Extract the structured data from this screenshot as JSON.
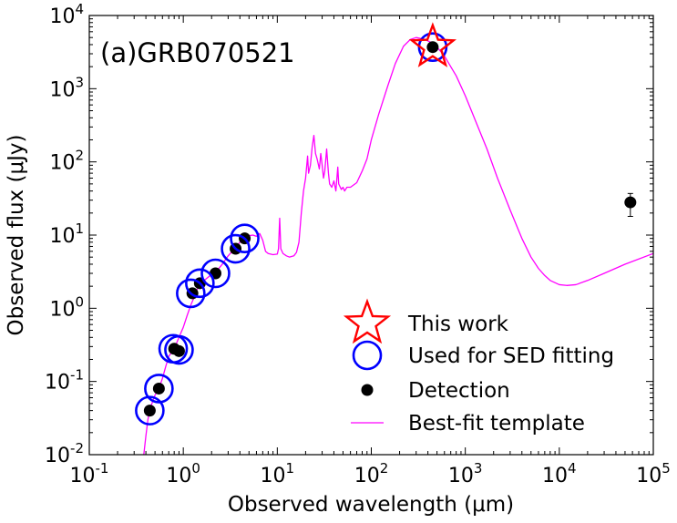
{
  "chart_data": {
    "type": "scatter",
    "annotation": "(a)GRB070521",
    "xlabel": "Observed wavelength (μm)",
    "ylabel": "Observed flux (μJy)",
    "xscale": "log",
    "yscale": "log",
    "xlim": [
      0.1,
      100000
    ],
    "ylim": [
      0.01,
      10000
    ],
    "x_ticks": [
      {
        "value": 0.1,
        "base": "10",
        "exp": "-1"
      },
      {
        "value": 1,
        "base": "10",
        "exp": "0"
      },
      {
        "value": 10,
        "base": "10",
        "exp": "1"
      },
      {
        "value": 100,
        "base": "10",
        "exp": "2"
      },
      {
        "value": 1000,
        "base": "10",
        "exp": "3"
      },
      {
        "value": 10000,
        "base": "10",
        "exp": "4"
      },
      {
        "value": 100000,
        "base": "10",
        "exp": "5"
      }
    ],
    "y_ticks": [
      {
        "value": 0.01,
        "base": "10",
        "exp": "-2"
      },
      {
        "value": 0.1,
        "base": "10",
        "exp": "-1"
      },
      {
        "value": 1,
        "base": "10",
        "exp": "0"
      },
      {
        "value": 10,
        "base": "10",
        "exp": "1"
      },
      {
        "value": 100,
        "base": "10",
        "exp": "2"
      },
      {
        "value": 1000,
        "base": "10",
        "exp": "3"
      },
      {
        "value": 10000,
        "base": "10",
        "exp": "4"
      }
    ],
    "legend": {
      "location": "lower-right",
      "entries": [
        {
          "label": "This work",
          "marker": "star",
          "color": "#ff0000"
        },
        {
          "label": "Used for SED fitting",
          "marker": "open-circle",
          "color": "#0000ff"
        },
        {
          "label": "Detection",
          "marker": "filled-circle",
          "color": "#000000"
        },
        {
          "label": "Best-fit template",
          "marker": "line",
          "color": "#ff00ff"
        }
      ]
    },
    "series": [
      {
        "name": "Detection",
        "points": [
          {
            "x": 0.44,
            "y": 0.04
          },
          {
            "x": 0.55,
            "y": 0.08
          },
          {
            "x": 0.8,
            "y": 0.28
          },
          {
            "x": 0.9,
            "y": 0.26
          },
          {
            "x": 1.25,
            "y": 1.6
          },
          {
            "x": 1.5,
            "y": 2.2
          },
          {
            "x": 2.2,
            "y": 3.0
          },
          {
            "x": 3.6,
            "y": 6.5
          },
          {
            "x": 4.5,
            "y": 9.0
          },
          {
            "x": 450,
            "y": 3700
          },
          {
            "x": 57000,
            "y": 28,
            "yerr_low": 18,
            "yerr_high": 37
          }
        ]
      },
      {
        "name": "Used for SED fitting",
        "points": [
          {
            "x": 0.44,
            "y": 0.04
          },
          {
            "x": 0.55,
            "y": 0.08
          },
          {
            "x": 0.78,
            "y": 0.28
          },
          {
            "x": 0.9,
            "y": 0.27
          },
          {
            "x": 1.2,
            "y": 1.6
          },
          {
            "x": 1.5,
            "y": 2.2
          },
          {
            "x": 2.2,
            "y": 3.0
          },
          {
            "x": 3.6,
            "y": 6.5
          },
          {
            "x": 4.5,
            "y": 9.0
          },
          {
            "x": 450,
            "y": 3700
          }
        ]
      },
      {
        "name": "This work",
        "points": [
          {
            "x": 450,
            "y": 3700
          }
        ]
      },
      {
        "name": "Best-fit template",
        "line": [
          [
            0.38,
            0.01
          ],
          [
            0.4,
            0.018
          ],
          [
            0.42,
            0.03
          ],
          [
            0.45,
            0.045
          ],
          [
            0.5,
            0.065
          ],
          [
            0.55,
            0.08
          ],
          [
            0.6,
            0.11
          ],
          [
            0.65,
            0.16
          ],
          [
            0.7,
            0.22
          ],
          [
            0.8,
            0.28
          ],
          [
            0.9,
            0.4
          ],
          [
            1.0,
            0.55
          ],
          [
            1.1,
            0.8
          ],
          [
            1.2,
            1.1
          ],
          [
            1.3,
            1.4
          ],
          [
            1.4,
            1.8
          ],
          [
            1.6,
            2.3
          ],
          [
            1.8,
            2.6
          ],
          [
            2.0,
            2.9
          ],
          [
            2.3,
            3.3
          ],
          [
            2.6,
            4.0
          ],
          [
            3.0,
            5.2
          ],
          [
            3.5,
            6.5
          ],
          [
            4.0,
            8.0
          ],
          [
            4.5,
            9.0
          ],
          [
            5.0,
            9.8
          ],
          [
            5.5,
            10.0
          ],
          [
            6.0,
            9.6
          ],
          [
            6.5,
            10.5
          ],
          [
            7.0,
            8.5
          ],
          [
            7.5,
            6.0
          ],
          [
            8.0,
            5.6
          ],
          [
            9.0,
            5.4
          ],
          [
            10.0,
            5.5
          ],
          [
            10.3,
            6.5
          ],
          [
            10.6,
            17
          ],
          [
            10.9,
            6.5
          ],
          [
            11.5,
            5.6
          ],
          [
            12.5,
            5.2
          ],
          [
            13.5,
            5.0
          ],
          [
            15.0,
            5.2
          ],
          [
            16.0,
            5.8
          ],
          [
            17.0,
            8.0
          ],
          [
            18.0,
            20
          ],
          [
            19.0,
            40
          ],
          [
            20.0,
            60
          ],
          [
            21.0,
            120
          ],
          [
            21.5,
            70
          ],
          [
            22.5,
            90
          ],
          [
            23.5,
            160
          ],
          [
            24.5,
            230
          ],
          [
            25.5,
            130
          ],
          [
            26.5,
            110
          ],
          [
            28.0,
            80
          ],
          [
            29.0,
            130
          ],
          [
            30.0,
            90
          ],
          [
            31.0,
            60
          ],
          [
            32.0,
            75
          ],
          [
            33.5,
            150
          ],
          [
            35.0,
            70
          ],
          [
            36.0,
            50
          ],
          [
            38.0,
            45
          ],
          [
            40.0,
            55
          ],
          [
            42.0,
            40
          ],
          [
            44.0,
            85
          ],
          [
            45.0,
            50
          ],
          [
            48.0,
            42
          ],
          [
            50.0,
            45
          ],
          [
            52.0,
            40
          ],
          [
            55.0,
            45
          ],
          [
            60.0,
            45
          ],
          [
            70.0,
            52
          ],
          [
            80.0,
            75
          ],
          [
            90.0,
            110
          ],
          [
            100,
            200
          ],
          [
            120,
            450
          ],
          [
            150,
            1100
          ],
          [
            180,
            2200
          ],
          [
            220,
            3800
          ],
          [
            260,
            4700
          ],
          [
            300,
            5000
          ],
          [
            350,
            4800
          ],
          [
            400,
            4500
          ],
          [
            450,
            4200
          ],
          [
            500,
            3700
          ],
          [
            600,
            2800
          ],
          [
            700,
            2000
          ],
          [
            800,
            1500
          ],
          [
            1000,
            800
          ],
          [
            1300,
            350
          ],
          [
            1700,
            150
          ],
          [
            2200,
            60
          ],
          [
            3000,
            22
          ],
          [
            4000,
            9
          ],
          [
            5000,
            5
          ],
          [
            6000,
            3.5
          ],
          [
            7000,
            2.8
          ],
          [
            8000,
            2.4
          ],
          [
            10000,
            2.1
          ],
          [
            12000,
            2.05
          ],
          [
            15000,
            2.1
          ],
          [
            20000,
            2.4
          ],
          [
            30000,
            3.0
          ],
          [
            50000,
            4.0
          ],
          [
            100000,
            5.6
          ]
        ]
      }
    ]
  }
}
